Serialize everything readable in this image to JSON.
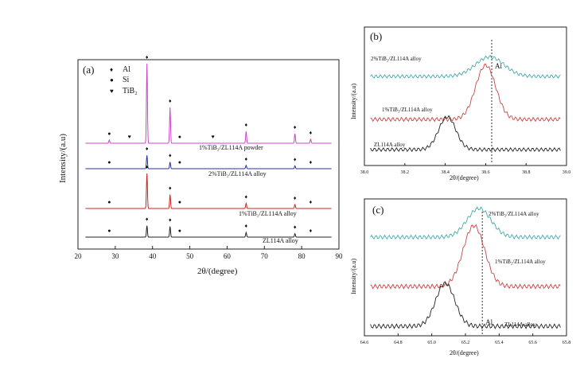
{
  "chart_data": [
    {
      "panel": "(a)",
      "type": "line",
      "xlabel": "2θ/(degree)",
      "ylabel": "Intensity/(a.u)",
      "xlim": [
        20,
        90
      ],
      "xticks": [
        "20",
        "30",
        "40",
        "50",
        "60",
        "70",
        "80",
        "90"
      ],
      "legend_entries": [
        {
          "symbol": "♦",
          "text": "Al"
        },
        {
          "symbol": "●",
          "text": "Si"
        },
        {
          "symbol": "♥",
          "text": "TiB₂"
        }
      ],
      "series": [
        {
          "name": "1%TiB₂/ZL114A powder",
          "color": "#cc44cc",
          "peaks": [
            [
              28.4,
              0.04
            ],
            [
              38.5,
              1.0
            ],
            [
              44.7,
              0.45
            ],
            [
              65.1,
              0.15
            ],
            [
              78.2,
              0.12
            ],
            [
              82.4,
              0.05
            ]
          ]
        },
        {
          "name": "2%TiB₂/ZL114A alloy",
          "color": "#2233aa",
          "peaks": [
            [
              38.5,
              0.28
            ],
            [
              44.7,
              0.14
            ],
            [
              65.1,
              0.07
            ],
            [
              78.2,
              0.06
            ]
          ]
        },
        {
          "name": "1%TiB₂/ZL114A alloy",
          "color": "#cc2222",
          "peaks": [
            [
              38.5,
              0.55
            ],
            [
              44.7,
              0.22
            ],
            [
              65.1,
              0.08
            ],
            [
              78.2,
              0.06
            ]
          ]
        },
        {
          "name": "ZL114A alloy",
          "color": "#222222",
          "peaks": [
            [
              38.5,
              0.3
            ],
            [
              44.7,
              0.28
            ],
            [
              65.1,
              0.12
            ],
            [
              78.2,
              0.09
            ]
          ]
        }
      ],
      "markers": [
        {
          "series": 0,
          "items": [
            [
              28.4,
              "●"
            ],
            [
              33.8,
              "♥"
            ],
            [
              38.5,
              "♦"
            ],
            [
              44.7,
              "♦"
            ],
            [
              47.3,
              "●"
            ],
            [
              56.2,
              "♥"
            ],
            [
              65.1,
              "♦"
            ],
            [
              78.2,
              "♦"
            ],
            [
              82.4,
              "♦"
            ]
          ]
        },
        {
          "series": 1,
          "items": [
            [
              28.4,
              "●"
            ],
            [
              38.5,
              "♦"
            ],
            [
              44.7,
              "♦"
            ],
            [
              47.3,
              "●"
            ],
            [
              65.1,
              "♦"
            ],
            [
              78.2,
              "♦"
            ],
            [
              82.4,
              "♦"
            ]
          ]
        },
        {
          "series": 2,
          "items": [
            [
              28.4,
              "●"
            ],
            [
              38.5,
              "♦"
            ],
            [
              44.7,
              "♦"
            ],
            [
              47.3,
              "●"
            ],
            [
              65.1,
              "♦"
            ],
            [
              78.2,
              "♦"
            ],
            [
              82.4,
              "♦"
            ]
          ]
        },
        {
          "series": 3,
          "items": [
            [
              28.4,
              "●"
            ],
            [
              38.5,
              "♦"
            ],
            [
              44.7,
              "♦"
            ],
            [
              47.3,
              "●"
            ],
            [
              65.1,
              "♦"
            ],
            [
              78.2,
              "♦"
            ],
            [
              82.4,
              "♦"
            ]
          ]
        }
      ]
    },
    {
      "panel": "(b)",
      "type": "line",
      "xlabel": "2θ/(degree)",
      "ylabel": "Intensity/(a.u)",
      "xlim": [
        38.0,
        39.0
      ],
      "xticks": [
        "38.0",
        "38.2",
        "38.4",
        "38.6",
        "38.8",
        "39.0"
      ],
      "reference_line": {
        "x": 38.63,
        "label": "Al"
      },
      "series": [
        {
          "name": "2%TiB₂/ZL114A alloy",
          "color": "#44aaaa",
          "peak": 38.62,
          "height": 0.35,
          "width": 0.1
        },
        {
          "name": "1%TiB₂/ZL114A alloy",
          "color": "#cc4444",
          "peak": 38.6,
          "height": 0.85,
          "width": 0.07
        },
        {
          "name": "ZL114A alloy",
          "color": "#222222",
          "peak": 38.41,
          "height": 0.55,
          "width": 0.06
        }
      ]
    },
    {
      "panel": "(c)",
      "type": "line",
      "xlabel": "2θ/(degree)",
      "ylabel": "Intensity/(a.u)",
      "xlim": [
        64.6,
        65.8
      ],
      "xticks": [
        "64.6",
        "64.8",
        "65.0",
        "65.2",
        "65.4",
        "65.6",
        "65.8"
      ],
      "reference_line": {
        "x": 65.3,
        "label": "Al"
      },
      "series": [
        {
          "name": "2%TiB₂/ZL114A alloy",
          "color": "#44aaaa",
          "peak": 65.28,
          "height": 0.45,
          "width": 0.1
        },
        {
          "name": "1%TiB₂/ZL114A alloy",
          "color": "#cc4444",
          "peak": 65.25,
          "height": 0.85,
          "width": 0.09
        },
        {
          "name": "ZL114A alloy",
          "color": "#222222",
          "peak": 65.08,
          "height": 0.6,
          "width": 0.08
        }
      ]
    }
  ]
}
